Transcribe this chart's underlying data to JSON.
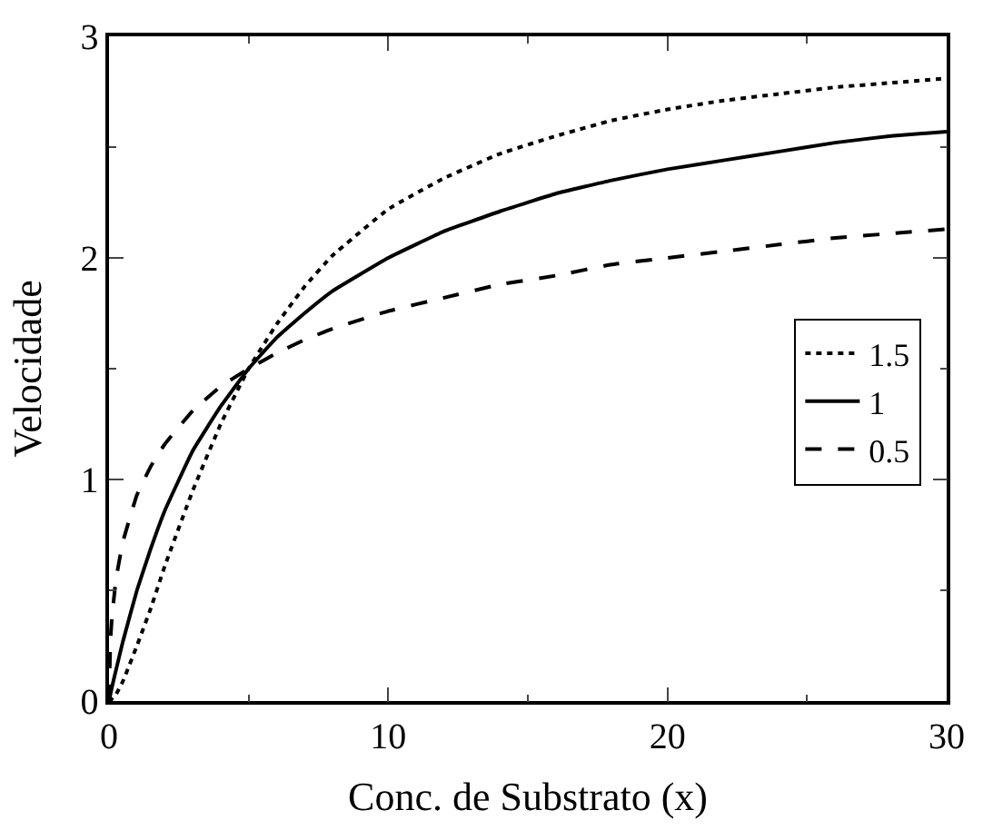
{
  "chart_data": {
    "type": "line",
    "xlabel": "Conc. de Substrato (x)",
    "ylabel": "Velocidade",
    "x": [
      0,
      0.05,
      0.1,
      0.25,
      0.5,
      1,
      1.5,
      2,
      3,
      4,
      5,
      6,
      7,
      8,
      10,
      12,
      14,
      16,
      18,
      20,
      22,
      24,
      26,
      28,
      30
    ],
    "series": [
      {
        "name": "1.5",
        "color": "#000000",
        "line_style": "dotted",
        "values": [
          0,
          0.0,
          0.01,
          0.03,
          0.09,
          0.25,
          0.42,
          0.61,
          0.95,
          1.25,
          1.5,
          1.7,
          1.87,
          2.01,
          2.22,
          2.36,
          2.47,
          2.55,
          2.62,
          2.67,
          2.71,
          2.74,
          2.77,
          2.79,
          2.81
        ]
      },
      {
        "name": "1",
        "color": "#000000",
        "line_style": "solid",
        "values": [
          0,
          0.03,
          0.06,
          0.14,
          0.27,
          0.5,
          0.69,
          0.86,
          1.13,
          1.33,
          1.5,
          1.64,
          1.75,
          1.85,
          2.0,
          2.12,
          2.21,
          2.29,
          2.35,
          2.4,
          2.44,
          2.48,
          2.52,
          2.55,
          2.57
        ]
      },
      {
        "name": "0.5",
        "color": "#000000",
        "line_style": "dashed",
        "values": [
          0,
          0.27,
          0.37,
          0.55,
          0.72,
          0.93,
          1.06,
          1.16,
          1.31,
          1.42,
          1.5,
          1.57,
          1.63,
          1.68,
          1.76,
          1.82,
          1.88,
          1.92,
          1.97,
          2.0,
          2.03,
          2.06,
          2.09,
          2.11,
          2.13
        ]
      }
    ],
    "xlim": [
      0,
      30
    ],
    "ylim": [
      0,
      3
    ],
    "xticks": [
      0,
      10,
      20,
      30
    ],
    "yticks": [
      0,
      1,
      2,
      3
    ],
    "legend": "right",
    "marker": "none"
  }
}
